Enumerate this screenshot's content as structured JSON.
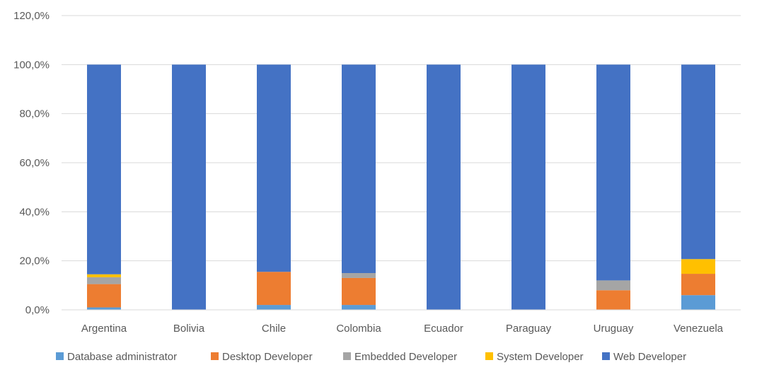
{
  "chart_data": {
    "type": "bar",
    "stacked": true,
    "title": "",
    "xlabel": "",
    "ylabel": "",
    "ylim": [
      0,
      120
    ],
    "y_ticks": [
      0,
      20,
      40,
      60,
      80,
      100,
      120
    ],
    "y_tick_labels": [
      "0,0%",
      "20,0%",
      "40,0%",
      "60,0%",
      "80,0%",
      "100,0%",
      "120,0%"
    ],
    "grid": true,
    "legend_position": "bottom",
    "categories": [
      "Argentina",
      "Bolivia",
      "Chile",
      "Colombia",
      "Ecuador",
      "Paraguay",
      "Uruguay",
      "Venezuela"
    ],
    "series": [
      {
        "name": "Database administrator",
        "color": "#5B9BD5",
        "values": [
          1.0,
          0,
          2.0,
          2.0,
          0,
          0,
          0,
          6.0
        ]
      },
      {
        "name": "Desktop Developer",
        "color": "#ED7D31",
        "values": [
          9.5,
          0,
          13.5,
          11.0,
          0,
          0,
          8.0,
          8.7
        ]
      },
      {
        "name": "Embedded Developer",
        "color": "#A5A5A5",
        "values": [
          2.8,
          0,
          0,
          2.0,
          0,
          0,
          4.0,
          0
        ]
      },
      {
        "name": "System Developer",
        "color": "#FFC000",
        "values": [
          1.2,
          0,
          0,
          0,
          0,
          0,
          0,
          6.0
        ]
      },
      {
        "name": "Web Developer",
        "color": "#4472C4",
        "values": [
          85.5,
          100,
          84.5,
          85.0,
          100,
          100,
          88.0,
          79.3
        ]
      }
    ]
  }
}
